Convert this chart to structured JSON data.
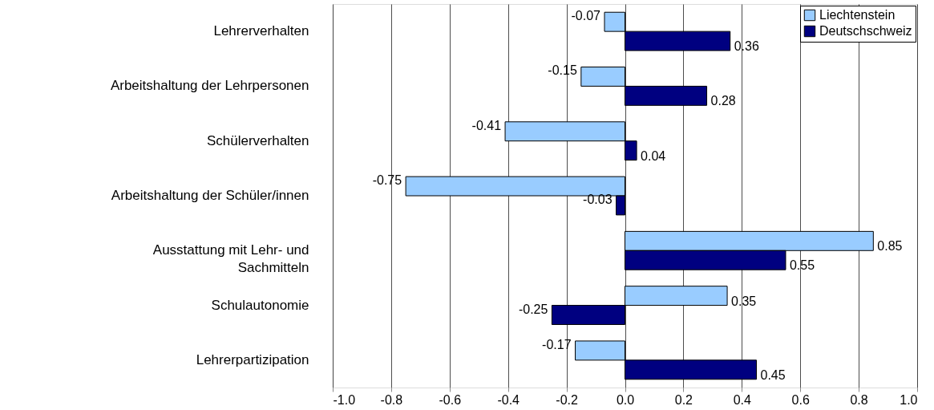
{
  "chart_data": {
    "type": "bar",
    "orientation": "horizontal",
    "categories": [
      "Lehrerverhalten",
      "Arbeitshaltung der Lehrpersonen",
      "Schülerverhalten",
      "Arbeitshaltung der Schüler/innen",
      "Ausstattung mit Lehr- und\nSachmitteln",
      "Schulautonomie",
      "Lehrerpartizipation"
    ],
    "series": [
      {
        "name": "Liechtenstein",
        "color": "#99ccff",
        "values": [
          -0.07,
          -0.15,
          -0.41,
          -0.75,
          0.85,
          0.35,
          -0.17
        ]
      },
      {
        "name": "Deutschschweiz",
        "color": "#000080",
        "values": [
          0.36,
          0.28,
          0.04,
          -0.03,
          0.55,
          -0.25,
          0.45
        ]
      }
    ],
    "xlim": [
      -1.0,
      1.0
    ],
    "xticks": [
      {
        "value": -1.0,
        "label": "-1.0"
      },
      {
        "value": -0.8,
        "label": "-0.8"
      },
      {
        "value": -0.6,
        "label": "-0.6"
      },
      {
        "value": -0.4,
        "label": "-0.4"
      },
      {
        "value": -0.2,
        "label": "-0.2"
      },
      {
        "value": 0,
        "label": "0.0"
      },
      {
        "value": 0.2,
        "label": "0.2"
      },
      {
        "value": 0.4,
        "label": "0.4"
      },
      {
        "value": 0.6,
        "label": "0.6"
      },
      {
        "value": 0.8,
        "label": "0.8"
      },
      {
        "value": 1.0,
        "label": "1.0"
      }
    ],
    "grid": "x",
    "legend": "top right",
    "data_labels": true
  }
}
